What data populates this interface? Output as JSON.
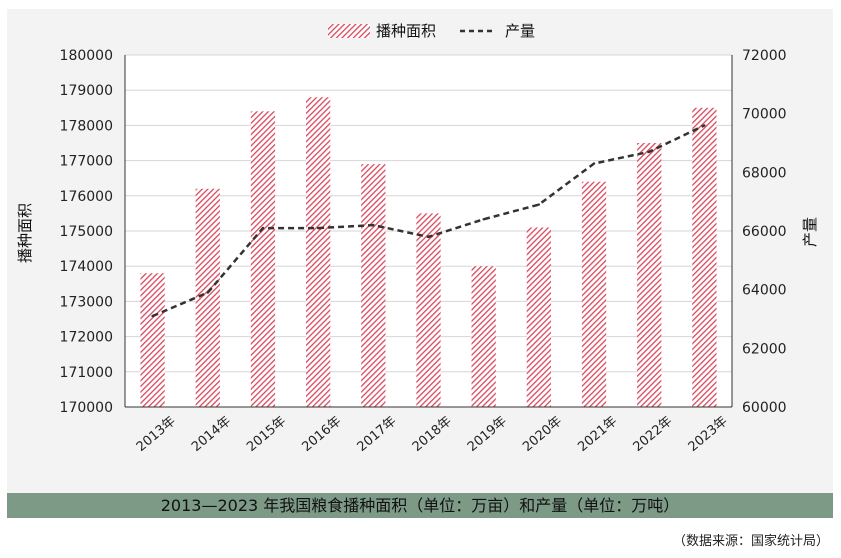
{
  "chart_data": {
    "type": "bar",
    "categories": [
      "2013年",
      "2014年",
      "2015年",
      "2016年",
      "2017年",
      "2018年",
      "2019年",
      "2020年",
      "2021年",
      "2022年",
      "2023年"
    ],
    "series": [
      {
        "name": "播种面积",
        "type": "bar",
        "axis": "left",
        "values": [
          173800,
          176200,
          178400,
          178800,
          176900,
          175500,
          174000,
          175100,
          176400,
          177500,
          178500
        ]
      },
      {
        "name": "产量",
        "type": "line",
        "axis": "right",
        "values": [
          63100,
          63900,
          66100,
          66100,
          66200,
          65800,
          66400,
          66900,
          68300,
          68700,
          69600
        ]
      }
    ],
    "ylabel_left": "播种面积",
    "ylabel_right": "产量",
    "ylim_left": [
      170000,
      180000
    ],
    "ylim_right": [
      60000,
      72000
    ],
    "yticks_left": [
      "170000",
      "171000",
      "172000",
      "173000",
      "174000",
      "175000",
      "176000",
      "177000",
      "178000",
      "179000",
      "180000"
    ],
    "yticks_right": [
      "60000",
      "62000",
      "64000",
      "66000",
      "68000",
      "70000",
      "72000"
    ],
    "legend": [
      "播种面积",
      "产量"
    ],
    "legend_position": "top",
    "bar_color": "#d9475c"
  },
  "caption": "2013—2023 年我国粮食播种面积（单位：万亩）和产量（单位：万吨）",
  "source_note": "（数据来源：国家统计局）"
}
